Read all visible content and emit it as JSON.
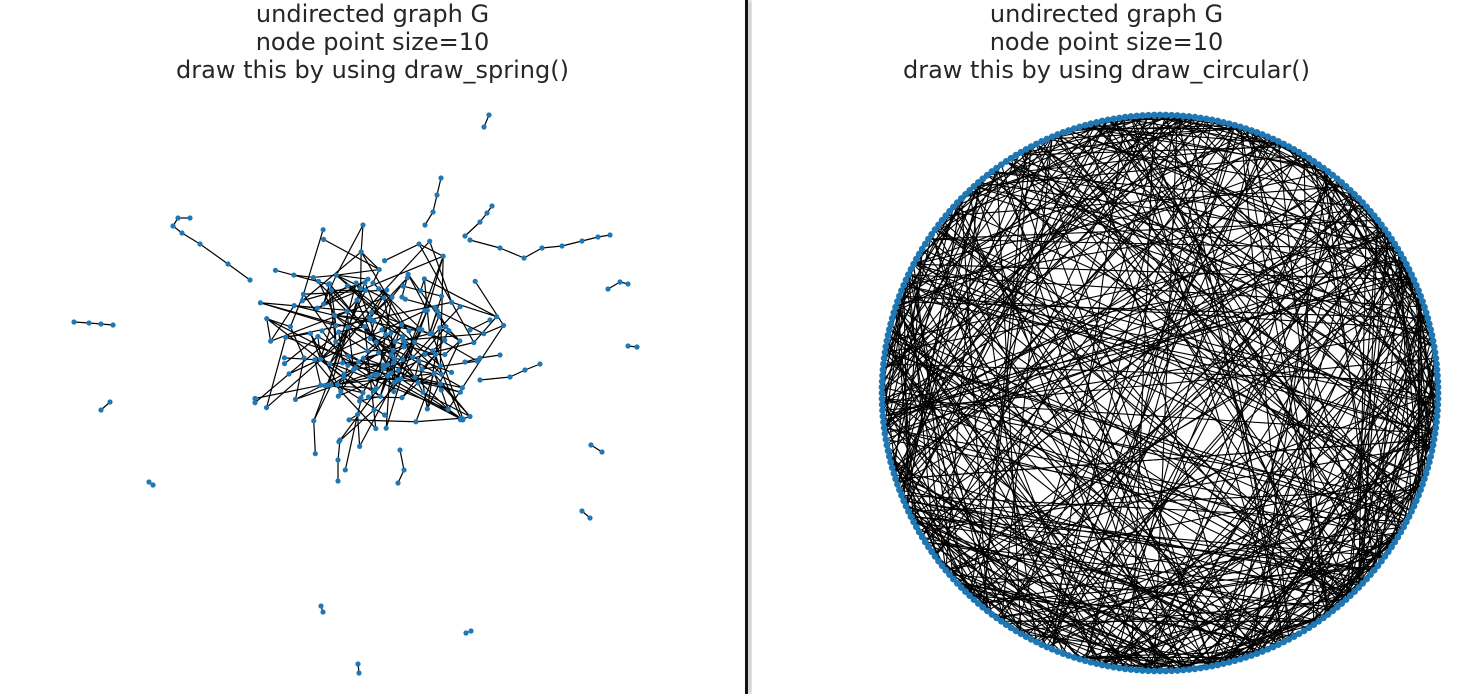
{
  "left": {
    "title_lines": [
      "undirected graph G",
      "node point size=10",
      "draw this by using draw_spring()"
    ]
  },
  "right": {
    "title_lines": [
      "undirected graph G",
      "node point size=10",
      "draw this by using draw_circular()"
    ]
  },
  "colors": {
    "node": "#1f77b4",
    "edge": "#000000",
    "text": "#262626",
    "background": "#ffffff"
  }
}
